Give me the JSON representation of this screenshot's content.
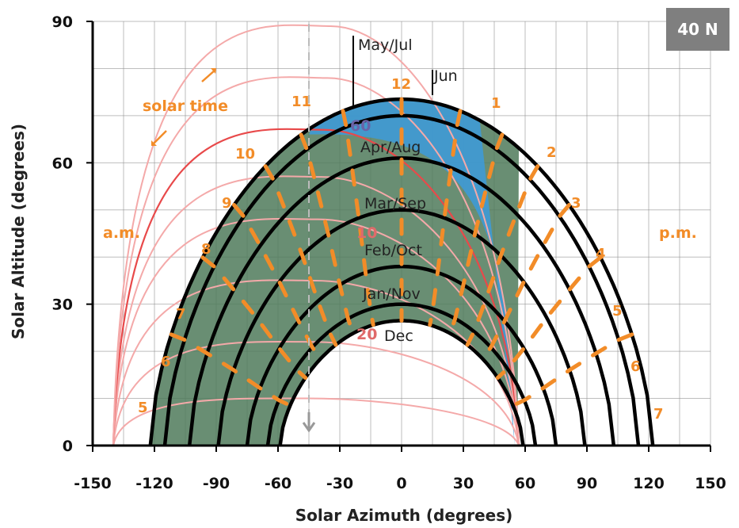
{
  "chart_data": {
    "type": "line",
    "title": "",
    "latitude_badge": "40 N",
    "xlabel": "Solar Azimuth (degrees)",
    "ylabel": "Solar Altitude (degrees)",
    "xlim": [
      -150,
      150
    ],
    "ylim": [
      0,
      90
    ],
    "xticks": [
      -150,
      -120,
      -90,
      -60,
      -30,
      0,
      30,
      60,
      90,
      120,
      150
    ],
    "yticks": [
      0,
      30,
      60,
      90
    ],
    "grid": true,
    "date_paths_shown": [
      {
        "name": "Jun",
        "max_altitude": 73.5,
        "sunrise_azimuth": -122,
        "color": "#000000"
      },
      {
        "name": "May/Jul",
        "max_altitude": 70,
        "sunrise_azimuth": -115,
        "color": "#000000"
      },
      {
        "name": "Apr/Aug",
        "max_altitude": 61,
        "sunrise_azimuth": -103,
        "color": "#000000"
      },
      {
        "name": "Mar/Sep",
        "max_altitude": 50,
        "sunrise_azimuth": -89,
        "color": "#000000"
      },
      {
        "name": "Feb/Oct",
        "max_altitude": 38,
        "sunrise_azimuth": -75,
        "color": "#000000"
      },
      {
        "name": "Jan/Nov",
        "max_altitude": 30,
        "sunrise_azimuth": -65,
        "color": "#000000"
      },
      {
        "name": "Dec",
        "max_altitude": 26.5,
        "sunrise_azimuth": -59,
        "color": "#000000"
      }
    ],
    "solar_time_hours": [
      "5",
      "6",
      "7",
      "8",
      "9",
      "10",
      "11",
      "12",
      "1",
      "2",
      "3",
      "4",
      "5",
      "6",
      "7"
    ],
    "annotations": {
      "am_label": "a.m.",
      "pm_label": "p.m.",
      "solar_time_label": "solar time",
      "inner_labels": [
        "60",
        "10",
        "20"
      ]
    },
    "colors": {
      "date_path": "#000000",
      "shaded_region": "#4f7a5a",
      "blue_region": "#3f9ad6",
      "sky_arc": "#f4a9a9",
      "sky_arc_strong": "#e8494a",
      "hour_line": "#f28c28",
      "grid": "#888888"
    }
  }
}
